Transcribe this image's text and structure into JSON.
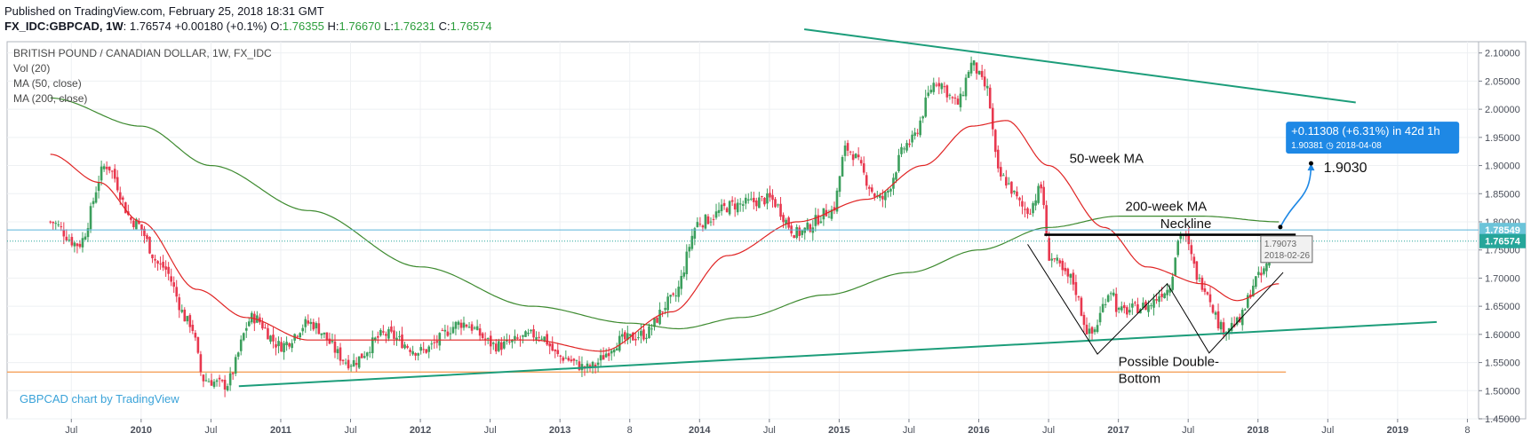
{
  "header": {
    "published": "Published on TradingView.com, February 25, 2018 18:31 GMT",
    "symbol": "FX_IDC:GBPCAD, 1W",
    "last": "1.76574",
    "change": "+0.00180 (+0.1%)",
    "o_label": "O:",
    "o": "1.76355",
    "h_label": "H:",
    "h": "1.76670",
    "l_label": "L:",
    "l": "1.76231",
    "c_label": "C:",
    "c": "1.76574"
  },
  "legend": {
    "title": "BRITISH POUND / CANADIAN DOLLAR, 1W, FX_IDC",
    "vol": "Vol (20)",
    "ma50": "MA (50, close)",
    "ma200": "MA (200, close)"
  },
  "watermark": "GBPCAD chart by TradingView",
  "colors": {
    "up": "#3c9f5d",
    "down": "#e8384f",
    "ma50": "#e02424",
    "ma200": "#3d8a2f",
    "trend": "#1c9d7a",
    "support": "#f4a460",
    "accent": "#1e88e5",
    "price_tag": "#26a69a"
  },
  "chart_data": {
    "type": "candlestick",
    "title": "BRITISH POUND / CANADIAN DOLLAR, 1W, FX_IDC",
    "x_ticks": [
      "Jul",
      "2010",
      "Jul",
      "2011",
      "Jul",
      "2012",
      "Jul",
      "2013",
      "8",
      "2014",
      "Jul",
      "2015",
      "Jul",
      "2016",
      "Jul",
      "2017",
      "Jul",
      "2018",
      "Jul",
      "2019",
      "8"
    ],
    "y_ticks": [
      "2.10000",
      "2.05000",
      "2.00000",
      "1.95000",
      "1.90000",
      "1.85000",
      "1.80000",
      "1.75000",
      "1.70000",
      "1.65000",
      "1.60000",
      "1.55000",
      "1.50000",
      "1.45000"
    ],
    "ylim": [
      1.45,
      2.12
    ],
    "current_price_tag": "1.76574",
    "neckline_tag": "1.78549",
    "price_anchors": [
      [
        2009.35,
        1.8
      ],
      [
        2009.55,
        1.76
      ],
      [
        2009.75,
        1.9
      ],
      [
        2009.95,
        1.8
      ],
      [
        2010.15,
        1.72
      ],
      [
        2010.35,
        1.62
      ],
      [
        2010.45,
        1.52
      ],
      [
        2010.6,
        1.51
      ],
      [
        2010.8,
        1.63
      ],
      [
        2011.0,
        1.58
      ],
      [
        2011.2,
        1.62
      ],
      [
        2011.5,
        1.55
      ],
      [
        2011.75,
        1.6
      ],
      [
        2012.0,
        1.57
      ],
      [
        2012.3,
        1.62
      ],
      [
        2012.55,
        1.58
      ],
      [
        2012.85,
        1.6
      ],
      [
        2013.0,
        1.56
      ],
      [
        2013.2,
        1.54
      ],
      [
        2013.45,
        1.59
      ],
      [
        2013.6,
        1.6
      ],
      [
        2013.8,
        1.66
      ],
      [
        2014.0,
        1.8
      ],
      [
        2014.25,
        1.83
      ],
      [
        2014.5,
        1.84
      ],
      [
        2014.7,
        1.78
      ],
      [
        2014.95,
        1.82
      ],
      [
        2015.05,
        1.93
      ],
      [
        2015.3,
        1.84
      ],
      [
        2015.5,
        1.94
      ],
      [
        2015.7,
        2.05
      ],
      [
        2015.85,
        2.01
      ],
      [
        2015.95,
        2.08
      ],
      [
        2016.05,
        2.04
      ],
      [
        2016.15,
        1.88
      ],
      [
        2016.35,
        1.82
      ],
      [
        2016.45,
        1.86
      ],
      [
        2016.5,
        1.74
      ],
      [
        2016.65,
        1.7
      ],
      [
        2016.8,
        1.6
      ],
      [
        2016.95,
        1.68
      ],
      [
        2017.0,
        1.64
      ],
      [
        2017.2,
        1.65
      ],
      [
        2017.35,
        1.68
      ],
      [
        2017.45,
        1.78
      ],
      [
        2017.6,
        1.69
      ],
      [
        2017.75,
        1.61
      ],
      [
        2017.85,
        1.62
      ],
      [
        2018.0,
        1.7
      ],
      [
        2018.15,
        1.765
      ]
    ],
    "ma50_anchors": [
      [
        2009.35,
        1.92
      ],
      [
        2009.7,
        1.87
      ],
      [
        2010.0,
        1.8
      ],
      [
        2010.4,
        1.68
      ],
      [
        2010.75,
        1.63
      ],
      [
        2011.2,
        1.59
      ],
      [
        2012.0,
        1.59
      ],
      [
        2012.8,
        1.59
      ],
      [
        2013.3,
        1.57
      ],
      [
        2013.8,
        1.64
      ],
      [
        2014.2,
        1.74
      ],
      [
        2014.7,
        1.8
      ],
      [
        2015.2,
        1.84
      ],
      [
        2015.6,
        1.9
      ],
      [
        2015.95,
        1.97
      ],
      [
        2016.2,
        1.98
      ],
      [
        2016.5,
        1.9
      ],
      [
        2016.9,
        1.79
      ],
      [
        2017.2,
        1.72
      ],
      [
        2017.6,
        1.69
      ],
      [
        2017.85,
        1.66
      ],
      [
        2018.15,
        1.69
      ]
    ],
    "ma200_anchors": [
      [
        2009.35,
        2.02
      ],
      [
        2010.0,
        1.97
      ],
      [
        2010.5,
        1.9
      ],
      [
        2011.2,
        1.82
      ],
      [
        2012.0,
        1.72
      ],
      [
        2012.8,
        1.65
      ],
      [
        2013.5,
        1.62
      ],
      [
        2013.85,
        1.61
      ],
      [
        2014.3,
        1.63
      ],
      [
        2014.9,
        1.67
      ],
      [
        2015.5,
        1.71
      ],
      [
        2016.0,
        1.75
      ],
      [
        2016.5,
        1.79
      ],
      [
        2017.0,
        1.81
      ],
      [
        2017.6,
        1.81
      ],
      [
        2018.15,
        1.8
      ]
    ],
    "annotations": {
      "ma50_label": "50-week MA",
      "ma200_label": "200-week MA",
      "neckline_label": "Neckline",
      "pattern_label_1": "Possible Double-",
      "pattern_label_2": "Bottom",
      "target_value": "1.9030",
      "measure_box_line1": "+0.11308 (+6.31%) in 42d 1h",
      "measure_box_line2": "1.90381  ◷ 2018-04-08",
      "neckline_point_price": "1.79073",
      "neckline_point_date": "2018-02-26"
    }
  }
}
